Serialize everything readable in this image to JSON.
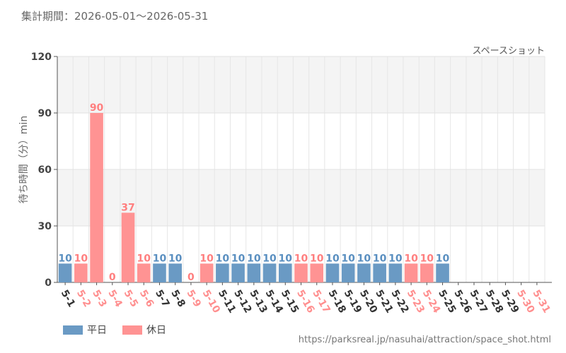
{
  "header": {
    "period": "集計期間：2026-05-01～2026-05-31",
    "source": "https://parksreal.jp/nasuhai/attraction/space_shot.html"
  },
  "legend": {
    "weekday": "平日",
    "holiday": "休日"
  },
  "colors": {
    "weekday": "#6a9ac4",
    "holiday": "#ff9393",
    "weekday_text": "#333333",
    "holiday_text": "#ff8f8f",
    "weekday_label": "#5a8fc0",
    "holiday_label": "#ff7f7f"
  },
  "chart_data": {
    "type": "bar",
    "title": "スペースショット",
    "ylabel": "待ち時間（分）min",
    "ylim": [
      0,
      120
    ],
    "yticks": [
      0,
      30,
      60,
      90,
      120
    ],
    "grid": true,
    "legend_position": "bottom-left",
    "categories": [
      "5-1",
      "5-2",
      "5-3",
      "5-4",
      "5-5",
      "5-6",
      "5-7",
      "5-8",
      "5-9",
      "5-10",
      "5-11",
      "5-12",
      "5-13",
      "5-14",
      "5-15",
      "5-16",
      "5-17",
      "5-18",
      "5-19",
      "5-20",
      "5-21",
      "5-22",
      "5-23",
      "5-24",
      "5-25",
      "5-26",
      "5-27",
      "5-28",
      "5-29",
      "5-30",
      "5-31"
    ],
    "day_type": [
      "weekday",
      "holiday",
      "holiday",
      "holiday",
      "holiday",
      "holiday",
      "weekday",
      "weekday",
      "holiday",
      "holiday",
      "weekday",
      "weekday",
      "weekday",
      "weekday",
      "weekday",
      "holiday",
      "holiday",
      "weekday",
      "weekday",
      "weekday",
      "weekday",
      "weekday",
      "holiday",
      "holiday",
      "weekday",
      "weekday",
      "weekday",
      "weekday",
      "weekday",
      "holiday",
      "holiday"
    ],
    "values": [
      10,
      10,
      90,
      0,
      37,
      10,
      10,
      10,
      0,
      10,
      10,
      10,
      10,
      10,
      10,
      10,
      10,
      10,
      10,
      10,
      10,
      10,
      10,
      10,
      10,
      null,
      null,
      null,
      null,
      null,
      null
    ],
    "series": [
      {
        "name": "平日",
        "values": [
          10,
          null,
          null,
          null,
          null,
          null,
          10,
          10,
          null,
          null,
          10,
          10,
          10,
          10,
          10,
          null,
          null,
          10,
          10,
          10,
          10,
          10,
          null,
          null,
          10,
          null,
          null,
          null,
          null,
          null,
          null
        ]
      },
      {
        "name": "休日",
        "values": [
          null,
          10,
          90,
          0,
          37,
          10,
          null,
          null,
          0,
          10,
          null,
          null,
          null,
          null,
          null,
          10,
          10,
          null,
          null,
          null,
          null,
          null,
          10,
          10,
          null,
          null,
          null,
          null,
          null,
          null,
          null
        ]
      }
    ]
  }
}
